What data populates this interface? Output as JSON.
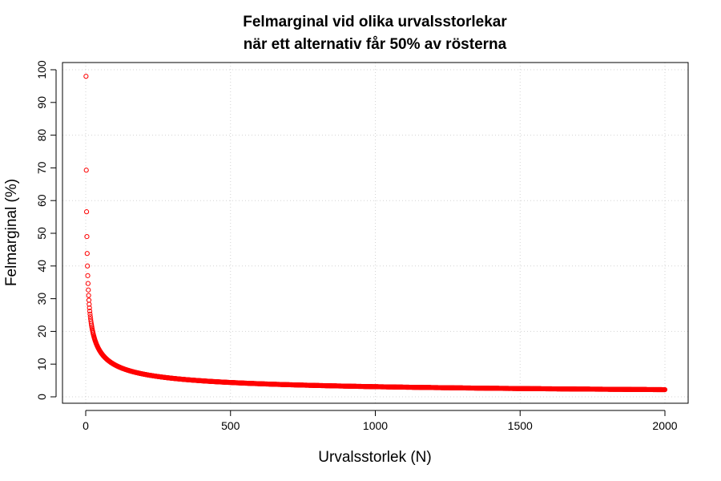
{
  "chart_data": {
    "type": "scatter",
    "title_line1": "Felmarginal vid olika urvalsstorlekar",
    "title_line2": "när ett alternativ får 50% av rösterna",
    "xlabel": "Urvalsstorlek (N)",
    "ylabel": "Felmarginal (%)",
    "xlim": [
      1,
      2000
    ],
    "ylim": [
      0,
      100
    ],
    "x_ticks": [
      0,
      500,
      1000,
      1500,
      2000
    ],
    "x_tick_labels": [
      "0",
      "500",
      "1000",
      "1500",
      "2000"
    ],
    "y_ticks": [
      0,
      10,
      20,
      30,
      40,
      50,
      60,
      70,
      80,
      90,
      100
    ],
    "y_tick_labels": [
      "0",
      "10",
      "20",
      "30",
      "40",
      "50",
      "60",
      "70",
      "80",
      "90",
      "100"
    ],
    "grid": true,
    "point_color": "#ff0000",
    "point_style": "open circle",
    "series": [
      {
        "formula": "y = 98 / sqrt(N)",
        "x_range": [
          1,
          2000
        ],
        "step": 1,
        "sample_points": [
          {
            "x": 1,
            "y": 98.0
          },
          {
            "x": 2,
            "y": 69.3
          },
          {
            "x": 3,
            "y": 56.6
          },
          {
            "x": 4,
            "y": 49.0
          },
          {
            "x": 5,
            "y": 43.8
          },
          {
            "x": 6,
            "y": 40.0
          },
          {
            "x": 7,
            "y": 37.0
          },
          {
            "x": 8,
            "y": 34.6
          },
          {
            "x": 9,
            "y": 32.7
          },
          {
            "x": 10,
            "y": 31.0
          },
          {
            "x": 25,
            "y": 19.6
          },
          {
            "x": 50,
            "y": 13.9
          },
          {
            "x": 100,
            "y": 9.8
          },
          {
            "x": 250,
            "y": 6.2
          },
          {
            "x": 500,
            "y": 4.4
          },
          {
            "x": 1000,
            "y": 3.1
          },
          {
            "x": 1500,
            "y": 2.5
          },
          {
            "x": 2000,
            "y": 2.2
          }
        ]
      }
    ]
  }
}
